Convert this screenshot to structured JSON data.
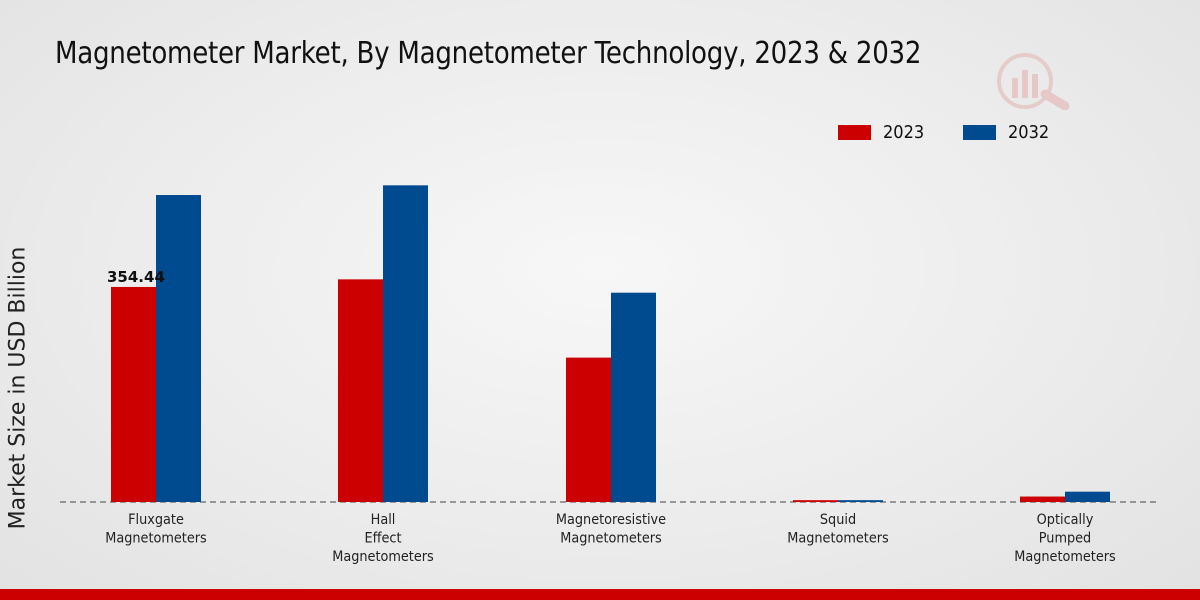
{
  "colors": {
    "2023": "#cc0000",
    "2032": "#004a8f"
  },
  "logo": {
    "icon": "brand-logo-icon"
  },
  "chart_data": {
    "type": "bar",
    "title": "Magnetometer Market, By Magnetometer Technology, 2023 & 2032",
    "xlabel": "",
    "ylabel": "Market Size in USD Billion",
    "categories": [
      [
        "Fluxgate",
        "Magnetometers"
      ],
      [
        "Hall",
        "Effect",
        "Magnetometers"
      ],
      [
        "Magnetoresistive",
        "Magnetometers"
      ],
      [
        "Squid",
        "Magnetometers"
      ],
      [
        "Optically",
        "Pumped",
        "Magnetometers"
      ]
    ],
    "series": [
      {
        "name": "2023",
        "values": [
          354.44,
          367,
          238,
          3,
          9
        ]
      },
      {
        "name": "2032",
        "values": [
          506,
          522,
          345,
          3,
          17
        ]
      }
    ],
    "data_labels": [
      {
        "series": 0,
        "index": 0,
        "text": "354.44"
      }
    ],
    "ylim": [
      0,
      600
    ],
    "grid": false,
    "legend_position": "top-right"
  }
}
